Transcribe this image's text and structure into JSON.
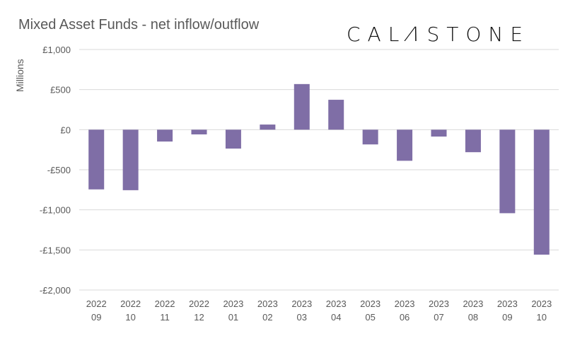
{
  "chart_data": {
    "type": "bar",
    "title": "Mixed Asset Funds - net inflow/outflow",
    "ylabel": "Millions",
    "xlabel": "",
    "categories": [
      [
        "2022",
        "09"
      ],
      [
        "2022",
        "10"
      ],
      [
        "2022",
        "11"
      ],
      [
        "2022",
        "12"
      ],
      [
        "2023",
        "01"
      ],
      [
        "2023",
        "02"
      ],
      [
        "2023",
        "03"
      ],
      [
        "2023",
        "04"
      ],
      [
        "2023",
        "05"
      ],
      [
        "2023",
        "06"
      ],
      [
        "2023",
        "07"
      ],
      [
        "2023",
        "08"
      ],
      [
        "2023",
        "09"
      ],
      [
        "2023",
        "10"
      ]
    ],
    "values": [
      -745,
      -755,
      -148,
      -59,
      -236,
      64,
      569,
      373,
      -184,
      -388,
      -86,
      -281,
      -1042,
      -1559
    ],
    "ylim": [
      -2000,
      1000
    ],
    "yticks": [
      1000,
      500,
      0,
      -500,
      -1000,
      -1500,
      -2000
    ],
    "ytick_labels": [
      "£1,000",
      "£500",
      "£0",
      "-£500",
      "-£1,000",
      "-£1,500",
      "-£2,000"
    ],
    "grid": true,
    "bar_color": "#7f6ea6",
    "grid_color": "#d9d9d9"
  },
  "logo": {
    "text": "CALASTONE"
  }
}
